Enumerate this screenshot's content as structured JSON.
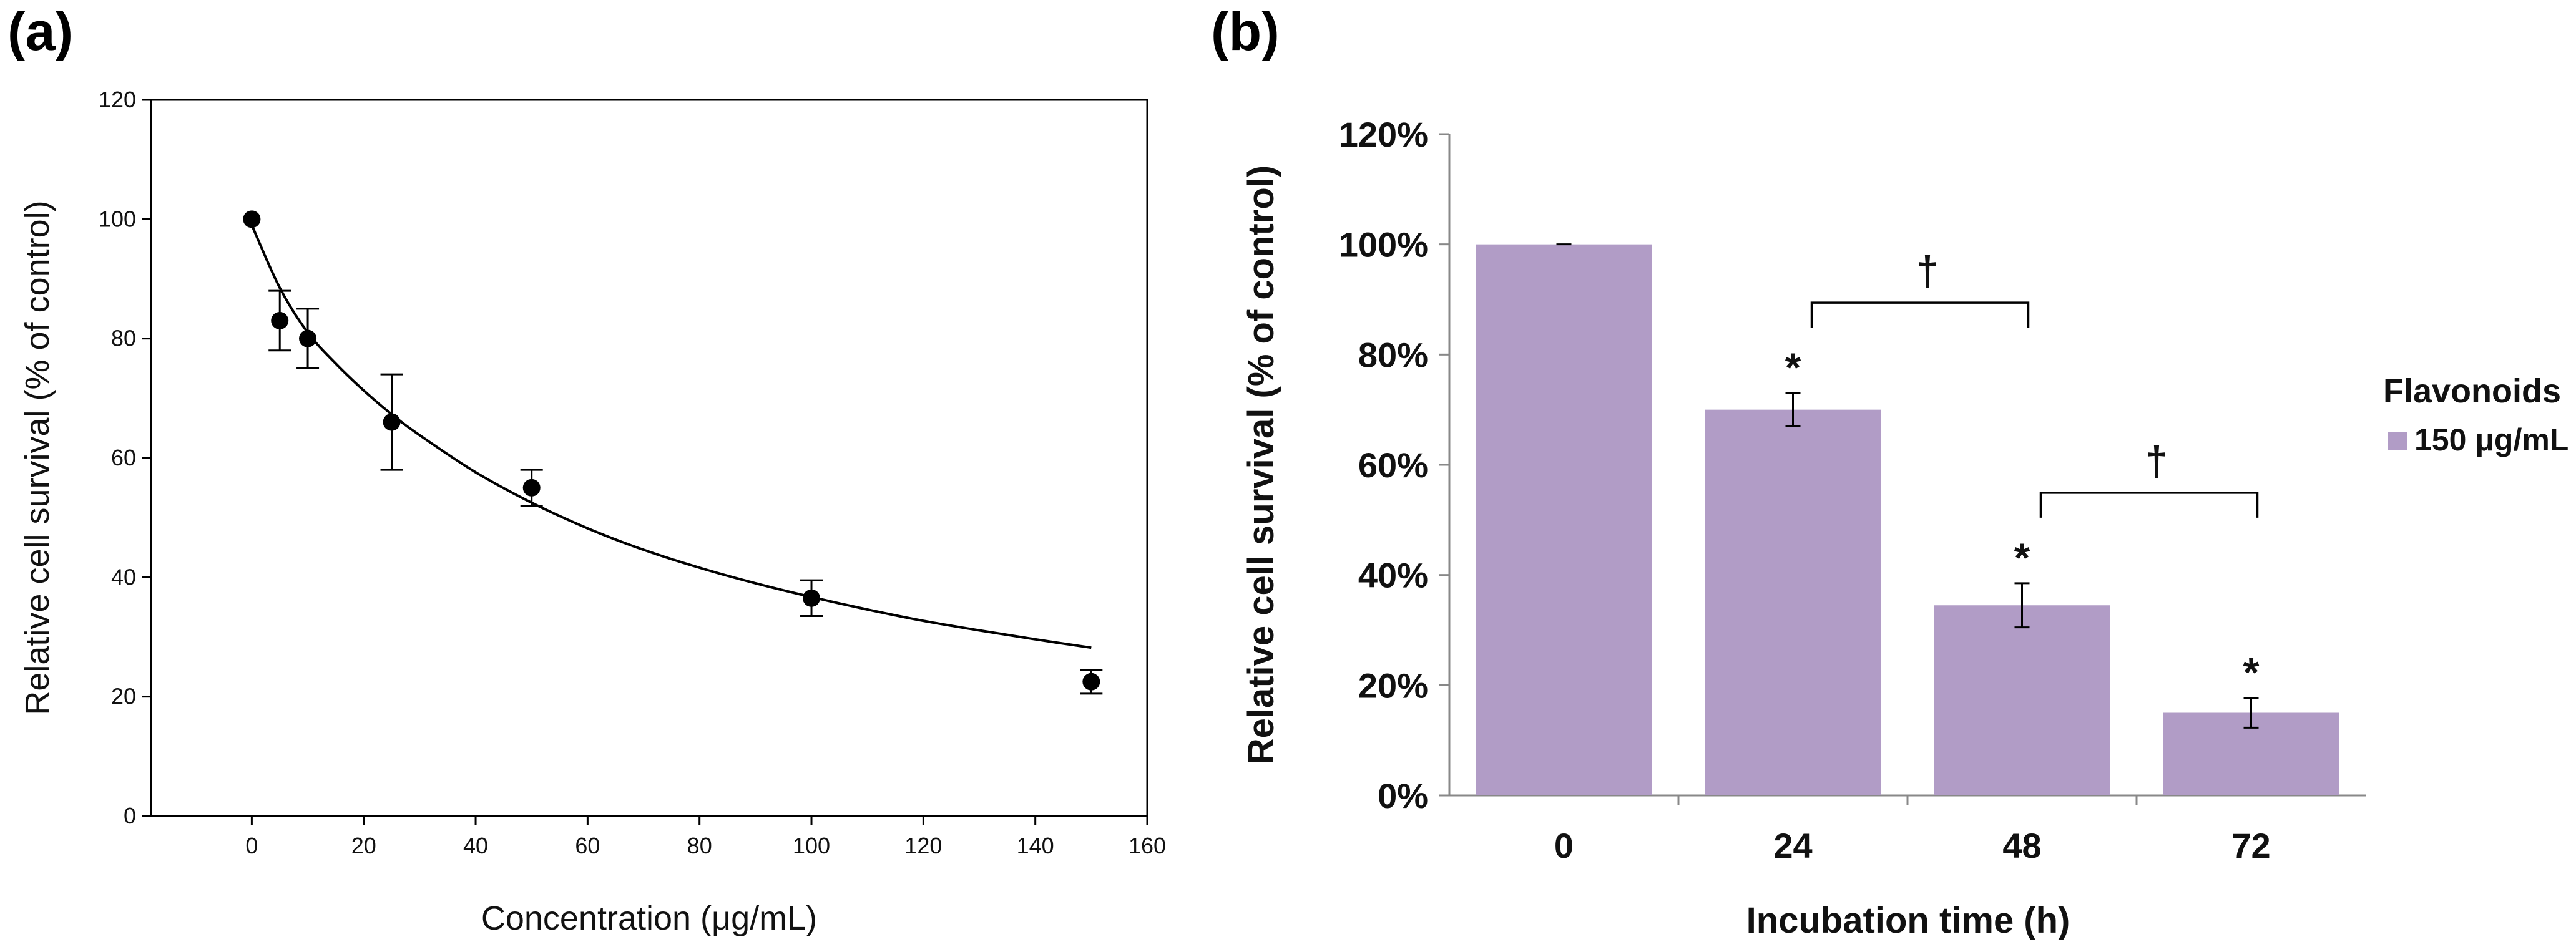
{
  "panels": {
    "a": "(a)",
    "b": "(b)"
  },
  "chart_data": [
    {
      "type": "scatter",
      "panel": "(a)",
      "xlabel": "Concentration (μg/mL)",
      "ylabel": "Relative cell survival (% of control)",
      "xlim": [
        -18,
        160
      ],
      "ylim": [
        0,
        120
      ],
      "xticks": [
        "0",
        "20",
        "40",
        "60",
        "80",
        "100",
        "120",
        "140",
        "160"
      ],
      "yticks": [
        "0",
        "20",
        "40",
        "60",
        "80",
        "100",
        "120"
      ],
      "points": [
        {
          "x": 0,
          "y": 100,
          "err": 0
        },
        {
          "x": 5,
          "y": 83,
          "err": 5
        },
        {
          "x": 10,
          "y": 80,
          "err": 5
        },
        {
          "x": 25,
          "y": 66,
          "err": 8
        },
        {
          "x": 50,
          "y": 55,
          "err": 3
        },
        {
          "x": 100,
          "y": 36.5,
          "err": 3
        },
        {
          "x": 150,
          "y": 22.5,
          "err": 2
        }
      ],
      "fit_curve": {
        "x": [
          0,
          5,
          10,
          15,
          20,
          25,
          30,
          40,
          50,
          60,
          70,
          80,
          90,
          100,
          110,
          120,
          130,
          140,
          150
        ],
        "y": [
          99,
          88.5,
          81,
          75.8,
          71.3,
          67.3,
          63.8,
          57.6,
          52.5,
          48.2,
          44.6,
          41.6,
          39,
          36.7,
          34.6,
          32.7,
          31.1,
          29.6,
          28.2
        ]
      }
    },
    {
      "type": "bar",
      "panel": "(b)",
      "xlabel": "Incubation time (h)",
      "ylabel": "Relative cell survival (% of control)",
      "categories": [
        "0",
        "24",
        "48",
        "72"
      ],
      "series": [
        {
          "name": "150 μg/mL",
          "values": [
            100,
            70,
            34.5,
            15
          ],
          "errors": [
            0,
            3,
            4,
            2.7
          ]
        }
      ],
      "ylim": [
        0,
        120
      ],
      "yticks": [
        "0%",
        "20%",
        "40%",
        "60%",
        "80%",
        "100%",
        "120%"
      ],
      "legend_title": "Flavonoids",
      "significance_markers": [
        "",
        "*",
        "*",
        "*"
      ],
      "brackets": [
        {
          "from": "24",
          "to": "48",
          "label": "†"
        },
        {
          "from": "48",
          "to": "72",
          "label": "†"
        }
      ],
      "colors": {
        "bar": "#B19CC6"
      }
    }
  ]
}
